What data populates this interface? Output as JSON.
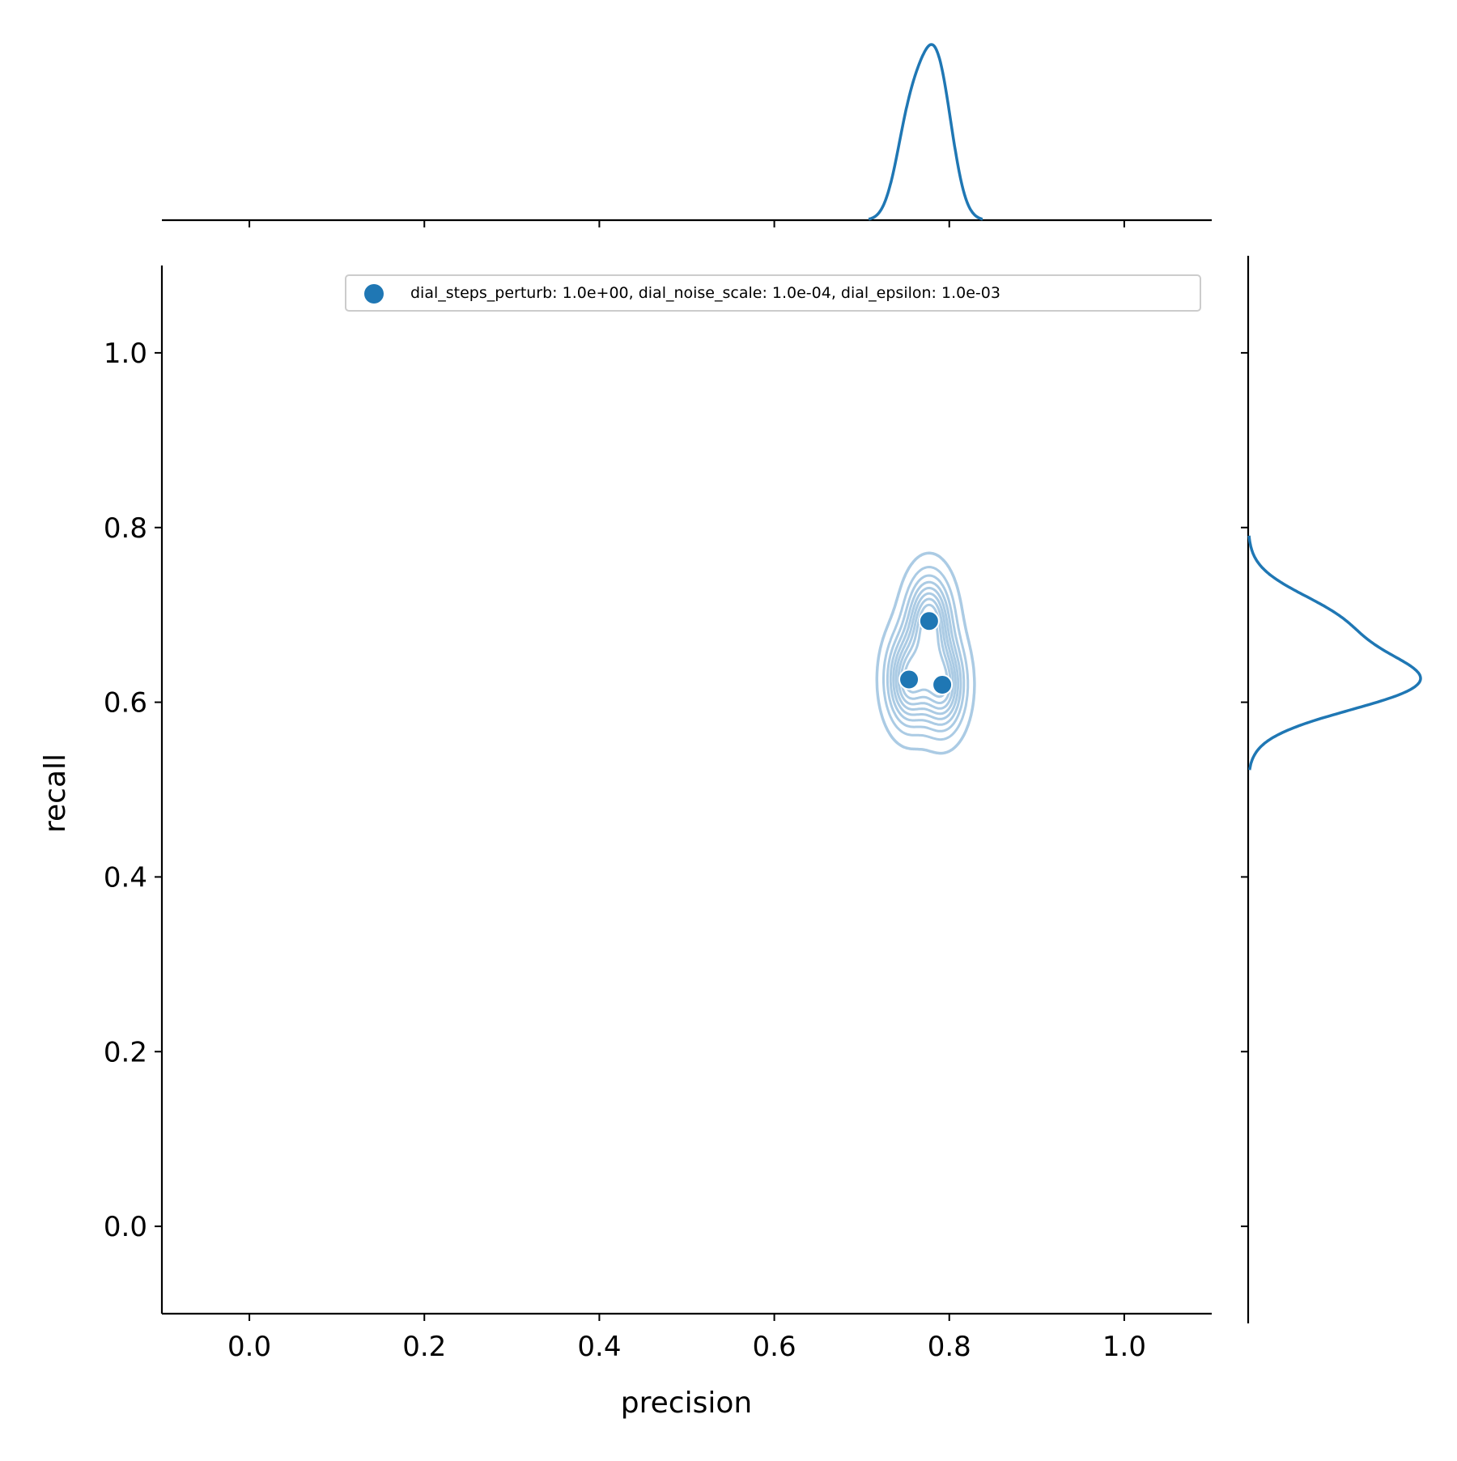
{
  "chart_data": {
    "type": "scatter",
    "title": "",
    "xlabel": "precision",
    "ylabel": "recall",
    "xlim": [
      -0.1,
      1.1
    ],
    "ylim": [
      -0.1,
      1.1
    ],
    "x_ticks": [
      0.0,
      0.2,
      0.4,
      0.6,
      0.8,
      1.0
    ],
    "y_ticks": [
      0.0,
      0.2,
      0.4,
      0.6,
      0.8,
      1.0
    ],
    "x_tick_labels": [
      "0.0",
      "0.2",
      "0.4",
      "0.6",
      "0.8",
      "1.0"
    ],
    "y_tick_labels": [
      "0.0",
      "0.2",
      "0.4",
      "0.6",
      "0.8",
      "1.0"
    ],
    "grid": false,
    "legend_position": "top-right",
    "series": [
      {
        "name": "dial_steps_perturb: 1.0e+00, dial_noise_scale: 1.0e-04, dial_epsilon: 1.0e-03",
        "color": "#1f77b4",
        "x": [
          0.777,
          0.754,
          0.792
        ],
        "y": [
          0.693,
          0.626,
          0.62
        ]
      }
    ],
    "kde_contours": true,
    "kde_contour_color": "#a6c8e3",
    "marginal_kde_color": "#1f77b4"
  }
}
